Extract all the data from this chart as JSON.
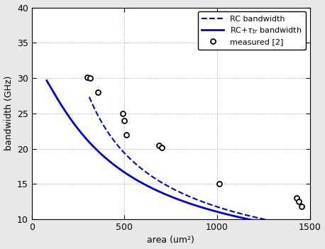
{
  "xlabel": "area (um²)",
  "ylabel": "bandwidth (GHz)",
  "xlim": [
    0,
    1500
  ],
  "ylim": [
    10,
    40
  ],
  "xticks": [
    0,
    500,
    1000,
    1500
  ],
  "yticks": [
    10,
    15,
    20,
    25,
    30,
    35,
    40
  ],
  "measured_x": [
    300,
    315,
    355,
    490,
    500,
    510,
    685,
    700,
    1010,
    1430,
    1440,
    1455
  ],
  "measured_y": [
    30.1,
    30.0,
    28.0,
    25.0,
    24.0,
    22.0,
    20.5,
    20.2,
    15.0,
    13.0,
    12.5,
    11.8
  ],
  "a_rc": 1700.0,
  "b_rc": 0.72,
  "rc_x_start": 310,
  "rc_x_end": 1500,
  "solid_x_start": 80,
  "solid_x_end": 1500,
  "f_tr": 32.5,
  "line_color": "#0000cc",
  "bg_color": "#e8e8e8",
  "plot_bg": "#ffffff",
  "grid_color": "#888888",
  "figsize": [
    4.58,
    3.51
  ],
  "dpi": 100
}
